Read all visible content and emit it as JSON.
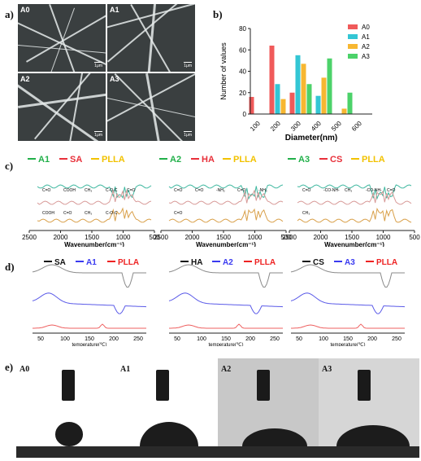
{
  "panels": {
    "a": {
      "label": "a)",
      "tiles": [
        "A0",
        "A1",
        "A2",
        "A3"
      ],
      "scale": "1μm"
    },
    "b": {
      "label": "b)"
    },
    "c": {
      "label": "c)",
      "spectra": [
        {
          "legend": [
            "A1",
            "SA",
            "PLLA"
          ],
          "annotations": [
            "C=O",
            "COOH",
            "CH₃",
            "C-O-C",
            "C=O",
            "COOH",
            "C=O",
            "CH₃",
            "C-O-C"
          ]
        },
        {
          "legend": [
            "A2",
            "HA",
            "PLLA"
          ],
          "annotations": [
            "C=O",
            "C=O",
            "-NH₂",
            "C=O",
            "-NH₂",
            "C=O"
          ]
        },
        {
          "legend": [
            "A3",
            "CS",
            "PLLA"
          ],
          "annotations": [
            "C=O",
            "-CO-NH-",
            "CH₃",
            "-CO-NH-",
            "C=O",
            "CH₃"
          ]
        }
      ],
      "xticks": [
        "2500",
        "2000",
        "1500",
        "1000",
        "500"
      ],
      "xlabel": "Wavenumber(cm⁻¹)"
    },
    "d": {
      "label": "d)",
      "thermograms": [
        {
          "legend": [
            "SA",
            "A1",
            "PLLA"
          ]
        },
        {
          "legend": [
            "HA",
            "A2",
            "PLLA"
          ]
        },
        {
          "legend": [
            "CS",
            "A3",
            "PLLA"
          ]
        }
      ],
      "xticks": [
        "50",
        "100",
        "150",
        "200",
        "250"
      ],
      "xlabel": "temperature(℃)"
    },
    "e": {
      "label": "e)",
      "samples": [
        "A0",
        "A1",
        "A2",
        "A3"
      ]
    }
  },
  "colors": {
    "A0": "#f05a5a",
    "A1": "#33c6d4",
    "A2": "#f7b731",
    "A3": "#4cd26a",
    "legend_green": "#22b04a",
    "legend_red": "#e8303a",
    "legend_yellow": "#f2c200",
    "dsc_black": "#111111",
    "dsc_blue": "#3a3af0",
    "dsc_red": "#ee2222"
  },
  "chart_data": {
    "type": "bar",
    "categories": [
      "100",
      "200",
      "300",
      "400",
      "500",
      "600"
    ],
    "series": [
      {
        "name": "A0",
        "values": [
          16,
          64,
          20,
          0,
          0,
          0
        ]
      },
      {
        "name": "A1",
        "values": [
          0,
          28,
          55,
          17,
          0,
          0
        ]
      },
      {
        "name": "A2",
        "values": [
          0,
          14,
          47,
          34,
          5,
          0
        ]
      },
      {
        "name": "A3",
        "values": [
          0,
          0,
          28,
          52,
          20,
          0
        ]
      }
    ],
    "xlabel": "Diameter(nm)",
    "ylabel": "Number of values",
    "ylim": [
      0,
      80
    ],
    "yticks": [
      "0",
      "20",
      "40",
      "60",
      "80"
    ],
    "legend_position": "top-right",
    "grid": false
  }
}
